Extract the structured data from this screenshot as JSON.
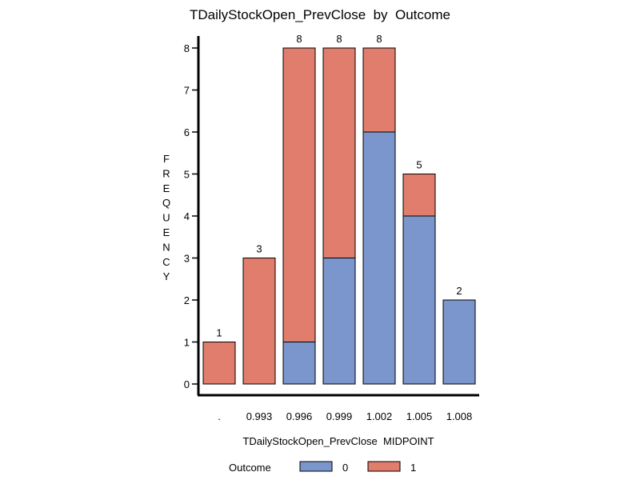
{
  "chart_data": {
    "type": "bar",
    "stacked": true,
    "title": "TDailyStockOpen_PrevClose  by  Outcome",
    "xlabel": "TDailyStockOpen_PrevClose  MIDPOINT",
    "ylabel": "FREQUENCY",
    "categories": [
      ".",
      "0.993",
      "0.996",
      "0.999",
      "1.002",
      "1.005",
      "1.008"
    ],
    "series": [
      {
        "name": "0",
        "color": "#7b96cd",
        "values": [
          0,
          0,
          1,
          3,
          6,
          4,
          2
        ]
      },
      {
        "name": "1",
        "color": "#e07d6c",
        "values": [
          1,
          3,
          7,
          5,
          2,
          1,
          0
        ]
      }
    ],
    "totals": [
      1,
      3,
      8,
      8,
      8,
      5,
      2
    ],
    "ylim": [
      0,
      8
    ],
    "yticks": [
      0,
      1,
      2,
      3,
      4,
      5,
      6,
      7,
      8
    ],
    "grid": false,
    "legend": {
      "title": "Outcome",
      "position": "bottom"
    }
  }
}
